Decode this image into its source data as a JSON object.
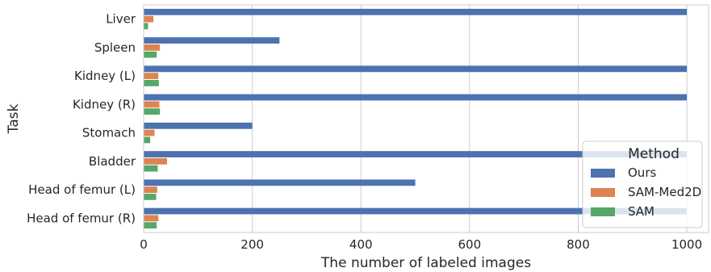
{
  "chart_data": {
    "type": "bar",
    "orientation": "horizontal",
    "categories": [
      "Liver",
      "Spleen",
      "Kidney (L)",
      "Kidney (R)",
      "Stomach",
      "Bladder",
      "Head of femur (L)",
      "Head of femur (R)"
    ],
    "series": [
      {
        "name": "Ours",
        "color": "#4c72b0",
        "values": [
          1000,
          250,
          1000,
          1000,
          200,
          1000,
          500,
          1000
        ]
      },
      {
        "name": "SAM-Med2D",
        "color": "#dd8452",
        "values": [
          18,
          30,
          27,
          29,
          20,
          43,
          25,
          27
        ]
      },
      {
        "name": "SAM",
        "color": "#55a868",
        "values": [
          8,
          24,
          28,
          30,
          12,
          26,
          23,
          24
        ]
      }
    ],
    "xlabel": "The number of labeled images",
    "ylabel": "Task",
    "xlim": [
      0,
      1040
    ],
    "xticks": [
      0,
      200,
      400,
      600,
      800,
      1000
    ],
    "grid": "vertical",
    "legend": {
      "title": "Method",
      "position": "right"
    }
  }
}
